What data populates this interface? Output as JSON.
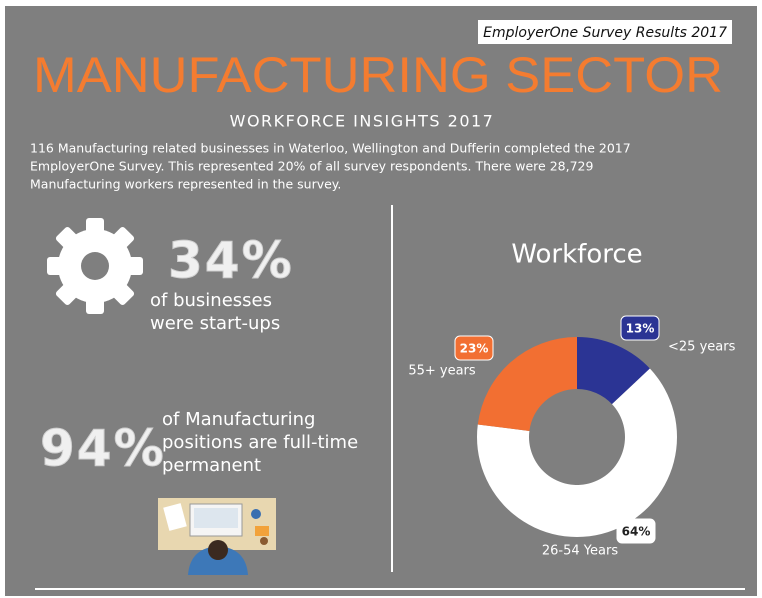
{
  "header": {
    "survey_label": "EmployerOne Survey Results 2017",
    "title": "MANUFACTURING SECTOR",
    "subtitle": "WORKFORCE INSIGHTS 2017"
  },
  "intro": {
    "lines": [
      "116 Manufacturing related businesses in Waterloo, Wellington and Dufferin completed the 2017",
      "EmployerOne Survey.  This represented 20% of all survey respondents.  There were 28,729",
      "Manufacturing workers represented in the survey."
    ]
  },
  "stats": [
    {
      "value_label": "34%",
      "lines": [
        "of businesses",
        "were start-ups"
      ]
    },
    {
      "value_label": "94%",
      "lines": [
        "of Manufacturing",
        "positions are full-time",
        "permanent"
      ]
    }
  ],
  "chart_data": {
    "type": "donut",
    "title": "Workforce",
    "categories": [
      "<25 years",
      "26-54 Years",
      "55+ years"
    ],
    "values": [
      13,
      64,
      23
    ],
    "value_labels": [
      "13%",
      "64%",
      "23%"
    ],
    "colors": [
      "#2b3494",
      "#ffffff",
      "#f26f32"
    ]
  }
}
